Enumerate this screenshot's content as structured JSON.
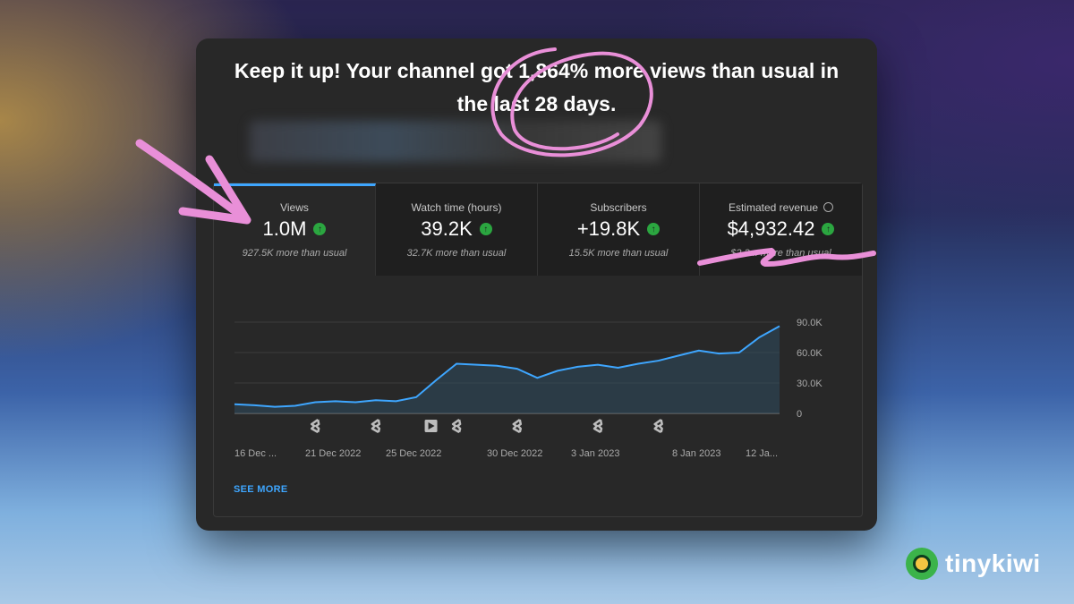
{
  "headline": {
    "line1": "Keep it up! Your channel got 1,864% more views than usual in",
    "line2": "the last 28 days."
  },
  "tabs": [
    {
      "title": "Views",
      "value": "1.0M",
      "sub": "927.5K more than usual",
      "active": true
    },
    {
      "title": "Watch time (hours)",
      "value": "39.2K",
      "sub": "32.7K more than usual",
      "active": false
    },
    {
      "title": "Subscribers",
      "value": "+19.8K",
      "sub": "15.5K more than usual",
      "active": false
    },
    {
      "title": "Estimated revenue",
      "value": "$4,932.42",
      "sub": "$2,3... more than usual",
      "active": false
    }
  ],
  "chart_data": {
    "type": "area",
    "x_labels": [
      "16 Dec ...",
      "21 Dec 2022",
      "25 Dec 2022",
      "30 Dec 2022",
      "3 Jan 2023",
      "8 Jan 2023",
      "12 Ja..."
    ],
    "y_ticks": [
      "90.0K",
      "60.0K",
      "30.0K",
      "0"
    ],
    "ylim": [
      0,
      90000
    ],
    "series": [
      {
        "values": [
          9000,
          8000,
          6500,
          7500,
          11000,
          12000,
          11000,
          13000,
          12000,
          16000,
          33000,
          49000,
          48000,
          47000,
          44000,
          35000,
          42000,
          46000,
          48000,
          45000,
          49000,
          52000,
          57000,
          62000,
          59000,
          60000,
          75000,
          86000
        ]
      }
    ],
    "shorts_markers": [
      4,
      7,
      11,
      14,
      18,
      21
    ],
    "video_markers": [
      10
    ],
    "grid": true,
    "colors": {
      "line": "#3ea6ff",
      "fill": "#2e4a5e"
    }
  },
  "see_more": "SEE MORE",
  "brand": {
    "name": "tinykiwi"
  },
  "colors": {
    "accent": "#3ea6ff",
    "up": "#2ba640",
    "annotation": "#e98fd8",
    "card": "#282828"
  }
}
